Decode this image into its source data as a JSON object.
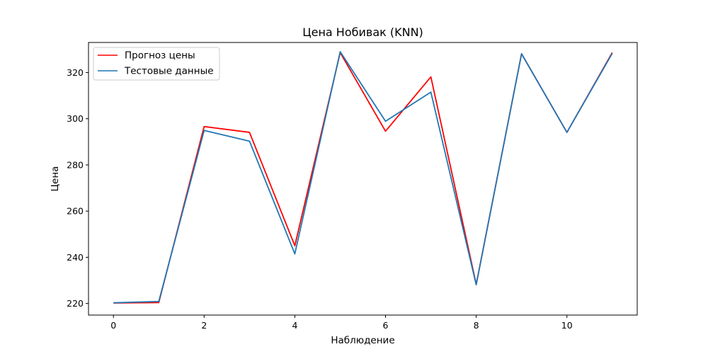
{
  "chart_data": {
    "type": "line",
    "title": "Цена Нобивак   (KNN)",
    "xlabel": "Наблюдение",
    "ylabel": "Цена",
    "x": [
      0,
      1,
      2,
      3,
      4,
      5,
      6,
      7,
      8,
      9,
      10,
      11
    ],
    "xlim": [
      -0.55,
      11.55
    ],
    "ylim": [
      215,
      333
    ],
    "xticks": [
      0,
      2,
      4,
      6,
      8,
      10
    ],
    "yticks": [
      220,
      240,
      260,
      280,
      300,
      320
    ],
    "grid": false,
    "legend_position": "upper left",
    "series": [
      {
        "name": "Прогноз цены",
        "color": "#ff0000",
        "values": [
          220.2,
          220.4,
          296.6,
          294.1,
          245.0,
          328.6,
          294.6,
          318.1,
          228.3,
          328.1,
          294.1,
          328.6
        ]
      },
      {
        "name": "Тестовые данные",
        "color": "#1f77b4",
        "values": [
          220.3,
          220.9,
          294.9,
          290.3,
          241.5,
          329.0,
          298.9,
          311.5,
          228.1,
          328.1,
          294.1,
          328.3
        ]
      }
    ]
  }
}
